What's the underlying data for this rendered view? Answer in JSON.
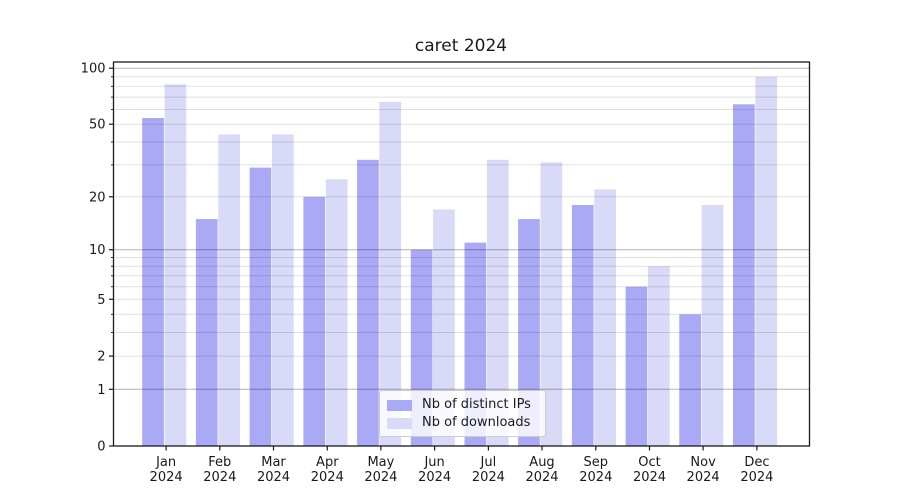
{
  "chart_data": {
    "type": "bar",
    "title": "caret 2024",
    "year": "2024",
    "categories": [
      "Jan",
      "Feb",
      "Mar",
      "Apr",
      "May",
      "Jun",
      "Jul",
      "Aug",
      "Sep",
      "Oct",
      "Nov",
      "Dec"
    ],
    "series": [
      {
        "name": "Nb of distinct IPs",
        "color": "#a9a9f5",
        "values": [
          54,
          15,
          29,
          20,
          32,
          10,
          11,
          15,
          18,
          6,
          4,
          64
        ]
      },
      {
        "name": "Nb of downloads",
        "color": "#d9d9f8",
        "values": [
          82,
          44,
          44,
          25,
          66,
          17,
          32,
          31,
          22,
          8,
          18,
          90
        ]
      }
    ],
    "yscale": "log1p",
    "ylim": [
      0,
      108
    ],
    "y_ticks_labeled": [
      0,
      1,
      2,
      5,
      10,
      20,
      50,
      100
    ],
    "y_minor_ticks": [
      3,
      4,
      6,
      7,
      8,
      9,
      30,
      40,
      60,
      70,
      80,
      90
    ],
    "grid_major_at": [
      1,
      10,
      100
    ],
    "grid_minor_at": [
      2,
      3,
      4,
      5,
      6,
      7,
      8,
      9,
      20,
      30,
      40,
      50,
      60,
      70,
      80,
      90
    ],
    "legend_position": "lower center",
    "colors": {
      "grid_major": "#b0b0b0",
      "grid_minor": "#e0e0e0",
      "axis": "#1a1a1a",
      "background": "#ffffff"
    }
  }
}
